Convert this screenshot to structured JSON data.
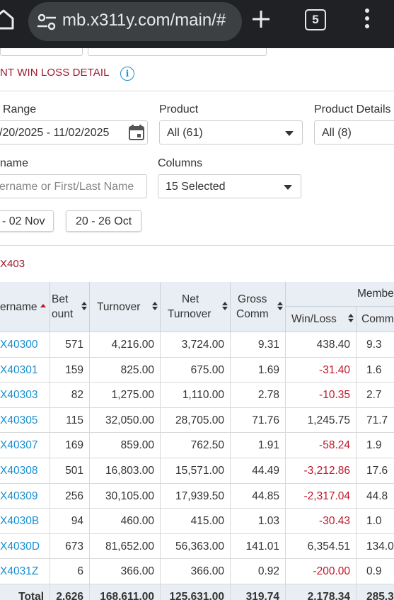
{
  "browser": {
    "url": "mb.x311y.com/main/#",
    "tab_count": "5"
  },
  "page": {
    "title": "NT WIN LOSS DETAIL",
    "info_icon": "i"
  },
  "filters": {
    "date_range_label": "Range",
    "date_range_value": "/20/2025 - 11/02/2025",
    "product_label": "Product",
    "product_value": "All (61)",
    "product_details_label": "Product Details",
    "product_details_value": "All (8)",
    "username_label": "name",
    "username_placeholder": "ername or First/Last Name",
    "columns_label": "Columns",
    "columns_value": "15 Selected",
    "quick_range_1": "- 02 Nov",
    "quick_range_2": "20 - 26 Oct"
  },
  "breadcrumb": "X403",
  "table": {
    "headers": {
      "username": "ername",
      "bet_count_1": "Bet",
      "bet_count_2": "ount",
      "turnover": "Turnover",
      "net_turnover_1": "Net",
      "net_turnover_2": "Turnover",
      "gross_comm_1": "Gross",
      "gross_comm_2": "Comm",
      "member_group": "Membe",
      "win_loss": "Win/Loss",
      "comm": "Comm"
    },
    "rows": [
      {
        "username": "X40300",
        "bet_count": "571",
        "turnover": "4,216.00",
        "net_turnover": "3,724.00",
        "gross_comm": "9.31",
        "win_loss": "438.40",
        "comm": "9.3"
      },
      {
        "username": "X40301",
        "bet_count": "159",
        "turnover": "825.00",
        "net_turnover": "675.00",
        "gross_comm": "1.69",
        "win_loss": "-31.40",
        "comm": "1.6"
      },
      {
        "username": "X40303",
        "bet_count": "82",
        "turnover": "1,275.00",
        "net_turnover": "1,110.00",
        "gross_comm": "2.78",
        "win_loss": "-10.35",
        "comm": "2.7"
      },
      {
        "username": "X40305",
        "bet_count": "115",
        "turnover": "32,050.00",
        "net_turnover": "28,705.00",
        "gross_comm": "71.76",
        "win_loss": "1,245.75",
        "comm": "71.7"
      },
      {
        "username": "X40307",
        "bet_count": "169",
        "turnover": "859.00",
        "net_turnover": "762.50",
        "gross_comm": "1.91",
        "win_loss": "-58.24",
        "comm": "1.9"
      },
      {
        "username": "X40308",
        "bet_count": "501",
        "turnover": "16,803.00",
        "net_turnover": "15,571.00",
        "gross_comm": "44.49",
        "win_loss": "-3,212.86",
        "comm": "17.6"
      },
      {
        "username": "X40309",
        "bet_count": "256",
        "turnover": "30,105.00",
        "net_turnover": "17,939.50",
        "gross_comm": "44.85",
        "win_loss": "-2,317.04",
        "comm": "44.8"
      },
      {
        "username": "X4030B",
        "bet_count": "94",
        "turnover": "460.00",
        "net_turnover": "415.00",
        "gross_comm": "1.03",
        "win_loss": "-30.43",
        "comm": "1.0"
      },
      {
        "username": "X4030D",
        "bet_count": "673",
        "turnover": "81,652.00",
        "net_turnover": "56,363.00",
        "gross_comm": "141.01",
        "win_loss": "6,354.51",
        "comm": "134.0"
      },
      {
        "username": "X4031Z",
        "bet_count": "6",
        "turnover": "366.00",
        "net_turnover": "366.00",
        "gross_comm": "0.92",
        "win_loss": "-200.00",
        "comm": "0.9"
      }
    ],
    "total": {
      "label": "Total",
      "bet_count": "2,626",
      "turnover": "168,611.00",
      "net_turnover": "125,631.00",
      "gross_comm": "319.74",
      "win_loss": "2,178.34",
      "comm": "285.3"
    }
  },
  "colors": {
    "title_red": "#9b1c2e",
    "link_blue": "#1a8fd0",
    "negative_red": "#c0172b",
    "header_bg": "#e8eef3",
    "browser_bar": "#202124"
  },
  "icons": {
    "home": "home-icon",
    "site_settings": "tune-icon",
    "new_tab": "plus-icon",
    "tabs": "tab-switcher-icon",
    "menu": "kebab-menu-icon",
    "info": "info-icon",
    "calendar": "calendar-icon",
    "dropdown": "caret-down-icon",
    "sort": "sort-icon"
  }
}
